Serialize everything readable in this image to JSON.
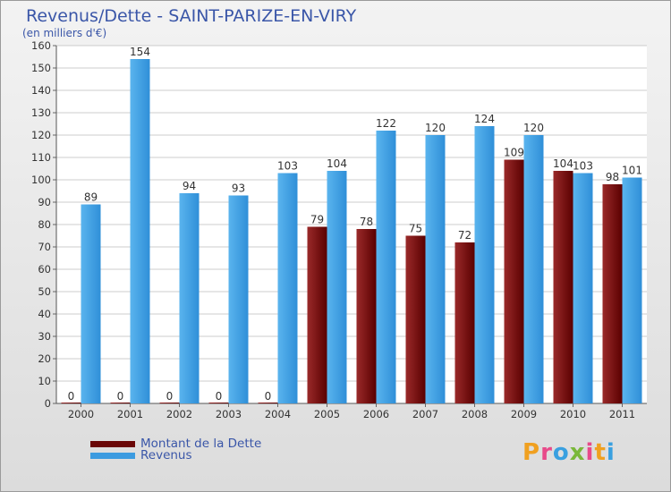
{
  "header": {
    "title": "Revenus/Dette - SAINT-PARIZE-EN-VIRY",
    "subtitle": "(en milliers d'€)"
  },
  "colors": {
    "dette": "#7a0a0a",
    "revenus": "#3c9be0",
    "title": "#3a56a8",
    "grid": "#c8c8c8"
  },
  "chart_data": {
    "type": "bar",
    "title": "Revenus/Dette - SAINT-PARIZE-EN-VIRY",
    "ylabel": "(en milliers d'€)",
    "xlabel": "",
    "ylim": [
      0,
      160
    ],
    "yticks": [
      0,
      10,
      20,
      30,
      40,
      50,
      60,
      70,
      80,
      90,
      100,
      110,
      120,
      130,
      140,
      150,
      160
    ],
    "grid": true,
    "legend_position": "bottom-left",
    "categories": [
      "2000",
      "2001",
      "2002",
      "2003",
      "2004",
      "2005",
      "2006",
      "2007",
      "2008",
      "2009",
      "2010",
      "2011"
    ],
    "series": [
      {
        "name": "Montant de la Dette",
        "values": [
          0,
          0,
          0,
          0,
          0,
          79,
          78,
          75,
          72,
          109,
          104,
          98
        ]
      },
      {
        "name": "Revenus",
        "values": [
          89,
          154,
          94,
          93,
          103,
          104,
          122,
          120,
          124,
          120,
          103,
          101
        ]
      }
    ]
  },
  "legend": {
    "items": [
      {
        "label": "Montant de la Dette",
        "icon": "dark-red-swatch"
      },
      {
        "label": "Revenus",
        "icon": "blue-swatch"
      }
    ]
  },
  "logo": {
    "letters": [
      "P",
      "r",
      "o",
      "x",
      "i",
      "t",
      "i"
    ]
  }
}
